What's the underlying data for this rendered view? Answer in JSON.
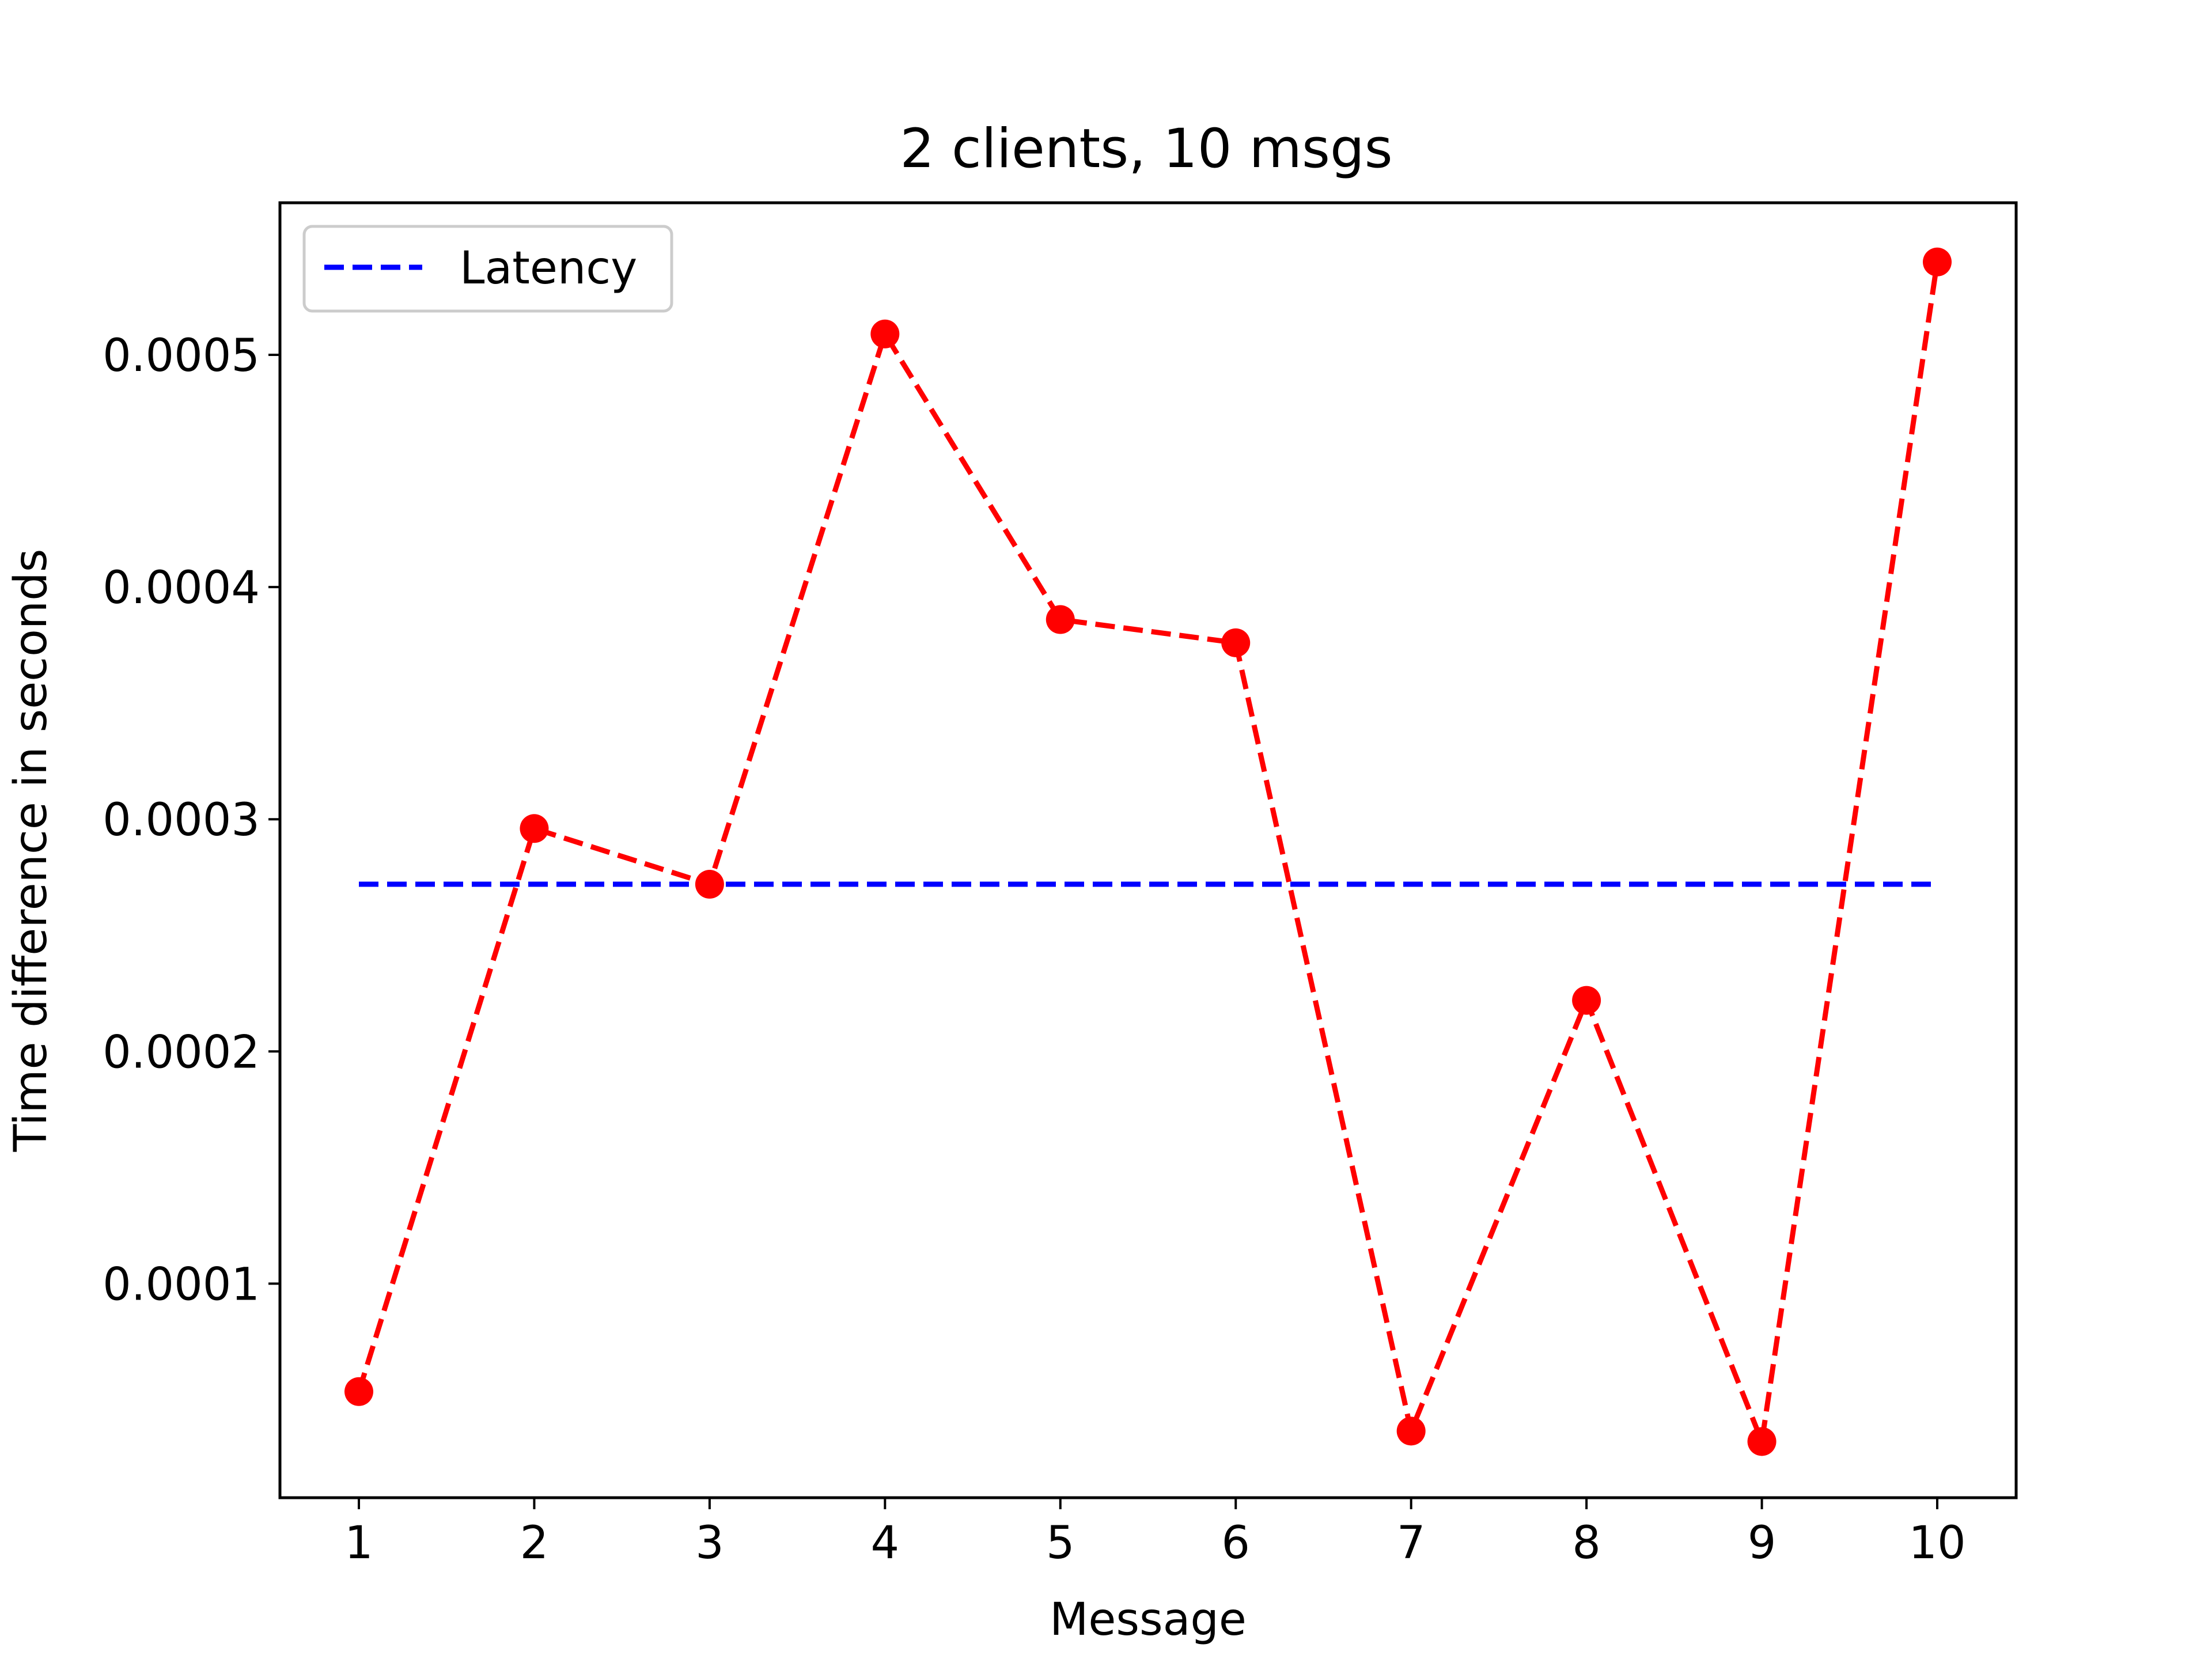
{
  "chart_data": {
    "type": "line",
    "title": "2 clients, 10 msgs",
    "xlabel": "Message",
    "ylabel": "Time difference in seconds",
    "x": [
      1,
      2,
      3,
      4,
      5,
      6,
      7,
      8,
      9,
      10
    ],
    "x_ticks": [
      "1",
      "2",
      "3",
      "4",
      "5",
      "6",
      "7",
      "8",
      "9",
      "10"
    ],
    "y_ticks": [
      "0.0001",
      "0.0002",
      "0.0003",
      "0.0004",
      "0.0005"
    ],
    "y_tick_values": [
      0.0001,
      0.0002,
      0.0003,
      0.0004,
      0.0005
    ],
    "xlim": [
      0.55,
      10.45
    ],
    "ylim": [
      7.8e-06,
      0.0005655
    ],
    "grid": false,
    "legend_position": "top-left",
    "series": [
      {
        "values": [
          5.35e-05,
          0.000296,
          0.000272,
          0.000509,
          0.000386,
          0.000376,
          3.65e-05,
          0.000222,
          3.2e-05,
          0.00054
        ],
        "color": "#ff0000",
        "line_style": "dashed",
        "marker": "circle"
      },
      {
        "name": "Latency",
        "values": [
          0.000272,
          0.000272,
          0.000272,
          0.000272,
          0.000272,
          0.000272,
          0.000272,
          0.000272,
          0.000272,
          0.000272
        ],
        "color": "#0000ff",
        "line_style": "dashed",
        "marker": "none"
      }
    ]
  }
}
